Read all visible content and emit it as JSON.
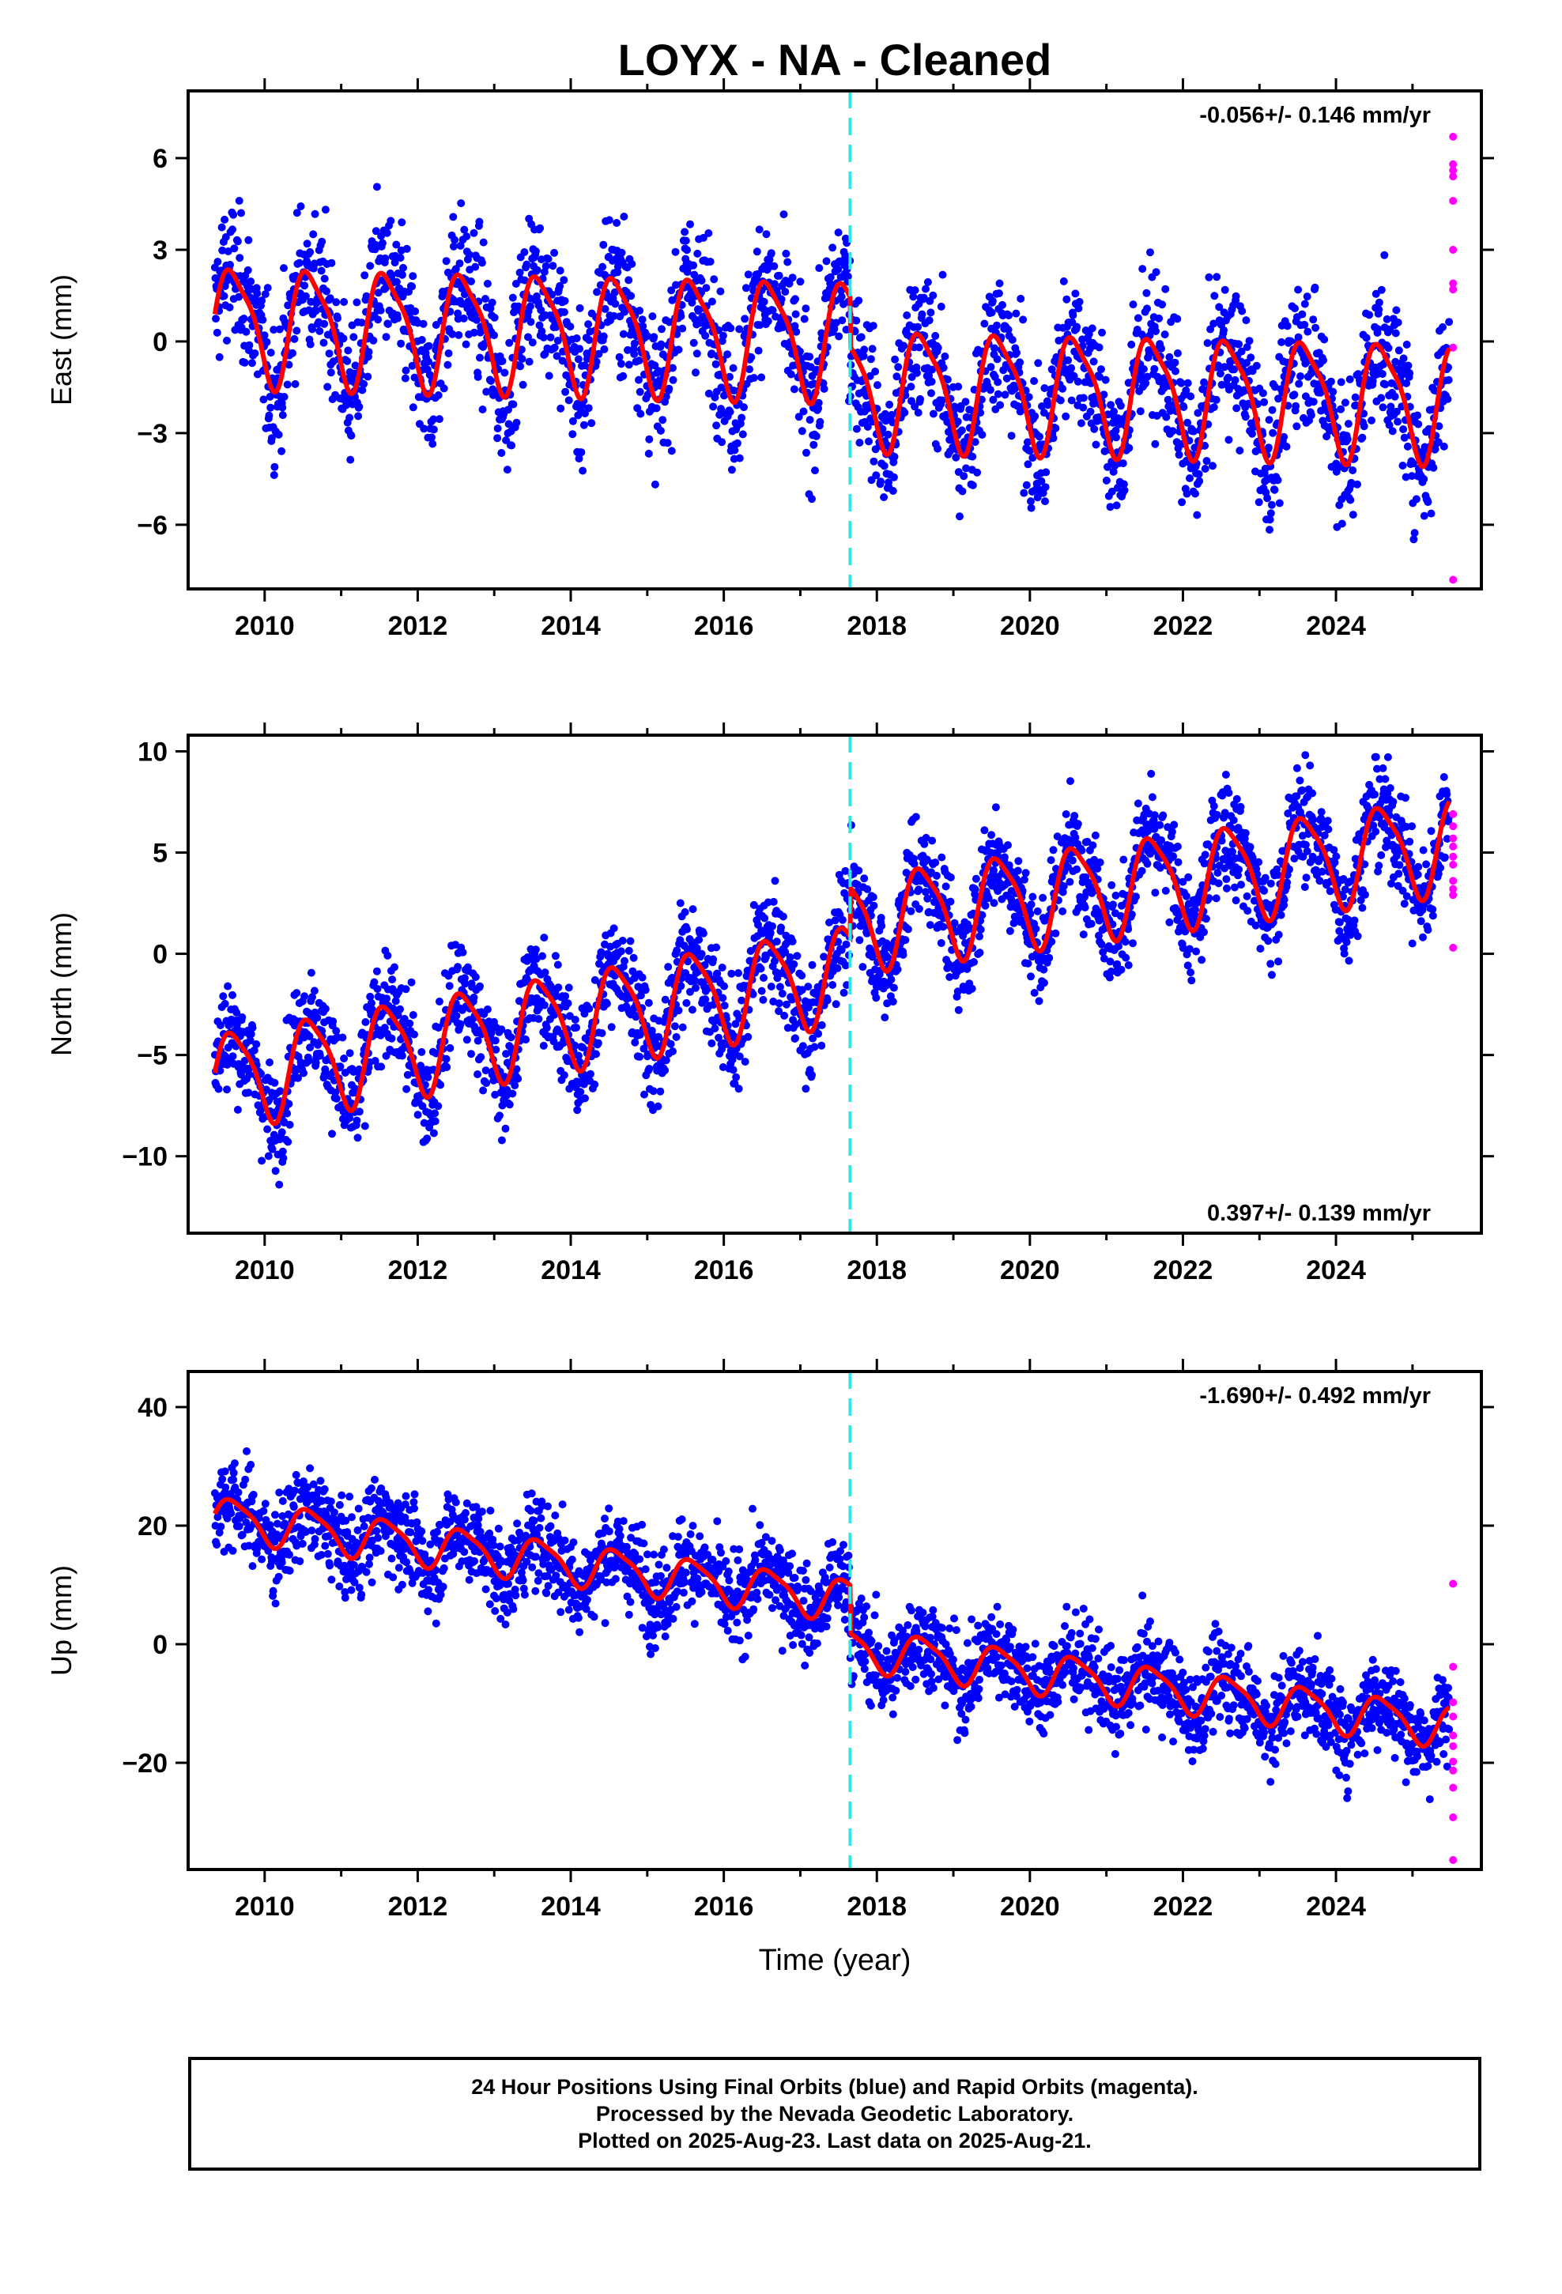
{
  "title": "LOYX  - NA - Cleaned",
  "xlabel": "Time (year)",
  "colors": {
    "final": "#0000ff",
    "rapid": "#ff00ff",
    "model": "#ff0000",
    "offset": "#33e5e5",
    "frame": "#000000"
  },
  "caption": [
    "24 Hour Positions Using Final Orbits (blue) and Rapid Orbits (magenta).",
    "Processed by the Nevada Geodetic Laboratory.",
    "Plotted on 2025-Aug-23. Last data on 2025-Aug-21."
  ],
  "chart_data": [
    {
      "type": "scatter",
      "ylabel": "East (mm)",
      "rate_label": "-0.056+/- 0.146 mm/yr",
      "rate_position": "top-right",
      "xlim": [
        2009.0,
        2025.9
      ],
      "ylim": [
        -8.1,
        8.2
      ],
      "xticks": [
        2010,
        2012,
        2014,
        2016,
        2018,
        2020,
        2022,
        2024
      ],
      "yticks": [
        6,
        3,
        0,
        -3,
        -6
      ],
      "ytick_labels": [
        "6",
        "3",
        "0",
        "−3",
        "−6"
      ],
      "data_start": 2009.35,
      "data_end": 2025.48,
      "offset_epoch": 2017.65,
      "model": {
        "rate": -0.056,
        "offset_at_break": -1.6,
        "annual_amp": 1.85,
        "semiannual_amp": 0.45,
        "noise": 1.15
      },
      "rapid_points": [
        6.7,
        5.8,
        5.6,
        5.4,
        4.6,
        3.0,
        1.9,
        1.7,
        -0.2,
        -7.8
      ]
    },
    {
      "type": "scatter",
      "ylabel": "North (mm)",
      "rate_label": "0.397+/- 0.139 mm/yr",
      "rate_position": "bottom-right",
      "xlim": [
        2009.0,
        2025.9
      ],
      "ylim": [
        -13.8,
        10.8
      ],
      "xticks": [
        2010,
        2012,
        2014,
        2016,
        2018,
        2020,
        2022,
        2024
      ],
      "yticks": [
        10,
        5,
        0,
        -5,
        -10
      ],
      "ytick_labels": [
        "10",
        "5",
        "0",
        "−5",
        "−10"
      ],
      "data_start": 2009.35,
      "data_end": 2025.48,
      "offset_epoch": 2017.65,
      "model": {
        "rate": 0.397,
        "start_value": -6.2,
        "offset_at_break": 4.5,
        "annual_amp": 2.3,
        "semiannual_amp": 0.5,
        "noise": 1.3
      },
      "rapid_points": [
        6.9,
        6.3,
        5.7,
        5.3,
        4.8,
        4.4,
        3.6,
        3.2,
        2.9,
        0.3
      ]
    },
    {
      "type": "scatter",
      "ylabel": "Up (mm)",
      "rate_label": "-1.690+/- 0.492 mm/yr",
      "rate_position": "top-right",
      "xlim": [
        2009.0,
        2025.9
      ],
      "ylim": [
        -38,
        46
      ],
      "xticks": [
        2010,
        2012,
        2014,
        2016,
        2018,
        2020,
        2022,
        2024
      ],
      "yticks": [
        40,
        20,
        0,
        -20
      ],
      "ytick_labels": [
        "40",
        "20",
        "0",
        "−20"
      ],
      "data_start": 2009.35,
      "data_end": 2025.48,
      "offset_epoch": 2017.65,
      "model": {
        "rate": -1.69,
        "start_value": 21.5,
        "offset_at_break": -8.0,
        "annual_amp": 3.4,
        "semiannual_amp": 0.8,
        "noise": 3.8
      },
      "rapid_points": [
        10.2,
        -3.8,
        -9.8,
        -12.2,
        -15.4,
        -17.2,
        -19.8,
        -21.3,
        -24.2,
        -29.2,
        -36.4
      ]
    }
  ]
}
